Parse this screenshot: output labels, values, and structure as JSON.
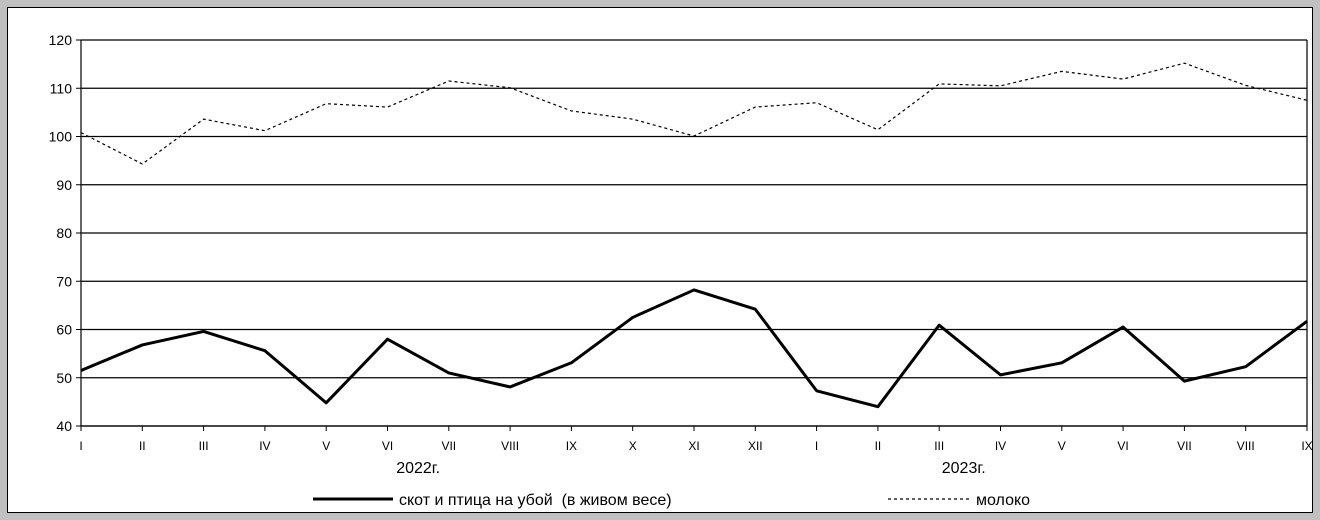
{
  "chart_data": {
    "type": "line",
    "categories": [
      "I",
      "II",
      "III",
      "IV",
      "V",
      "VI",
      "VII",
      "VIII",
      "IX",
      "X",
      "XI",
      "XII",
      "I",
      "II",
      "III",
      "IV",
      "V",
      "VI",
      "VII",
      "VIII",
      "IX"
    ],
    "year_labels": [
      "2022г.",
      "2023г."
    ],
    "series": [
      {
        "name": "скот и птица на убой  (в живом весе)",
        "style": "solid",
        "color": "#000000",
        "values": [
          51.5,
          56.8,
          59.6,
          55.6,
          44.8,
          58.0,
          51.0,
          48.1,
          53.1,
          62.5,
          68.2,
          64.2,
          47.3,
          44.0,
          60.9,
          50.6,
          53.1,
          60.5,
          49.3,
          52.3,
          61.7
        ]
      },
      {
        "name": "молоко",
        "style": "dashed",
        "color": "#000000",
        "values": [
          100.8,
          94.3,
          103.6,
          101.2,
          106.8,
          106.1,
          111.5,
          110.1,
          105.3,
          103.6,
          100.1,
          106.1,
          107.0,
          101.4,
          110.9,
          110.5,
          113.5,
          111.9,
          115.2,
          110.6,
          107.5
        ]
      }
    ],
    "yticks": [
      40,
      50,
      60,
      70,
      80,
      90,
      100,
      110,
      120
    ],
    "ylim": [
      40,
      120
    ],
    "grid": true,
    "legend_position": "bottom",
    "title": "",
    "xlabel": "",
    "ylabel": ""
  }
}
